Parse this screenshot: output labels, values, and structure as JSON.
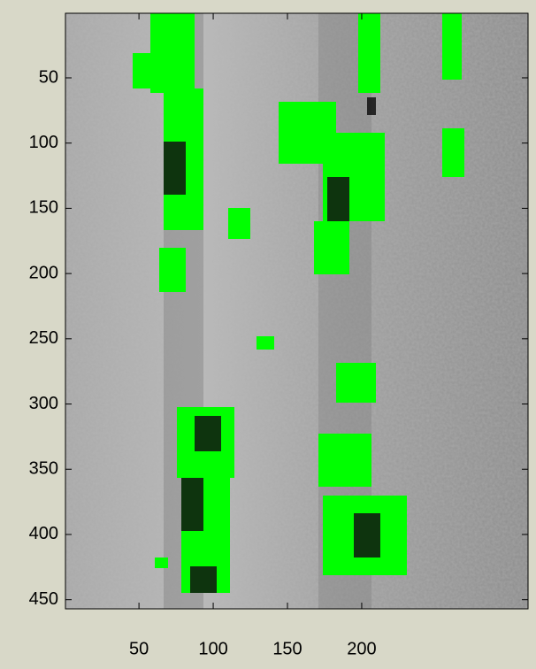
{
  "chart_data": {
    "type": "image",
    "xlim": [
      0.5,
      312
    ],
    "ylim": [
      0.5,
      457
    ],
    "y_reversed": true,
    "xticks": [
      50,
      100,
      150,
      200
    ],
    "yticks": [
      50,
      100,
      150,
      200,
      250,
      300,
      350,
      400,
      450
    ]
  }
}
